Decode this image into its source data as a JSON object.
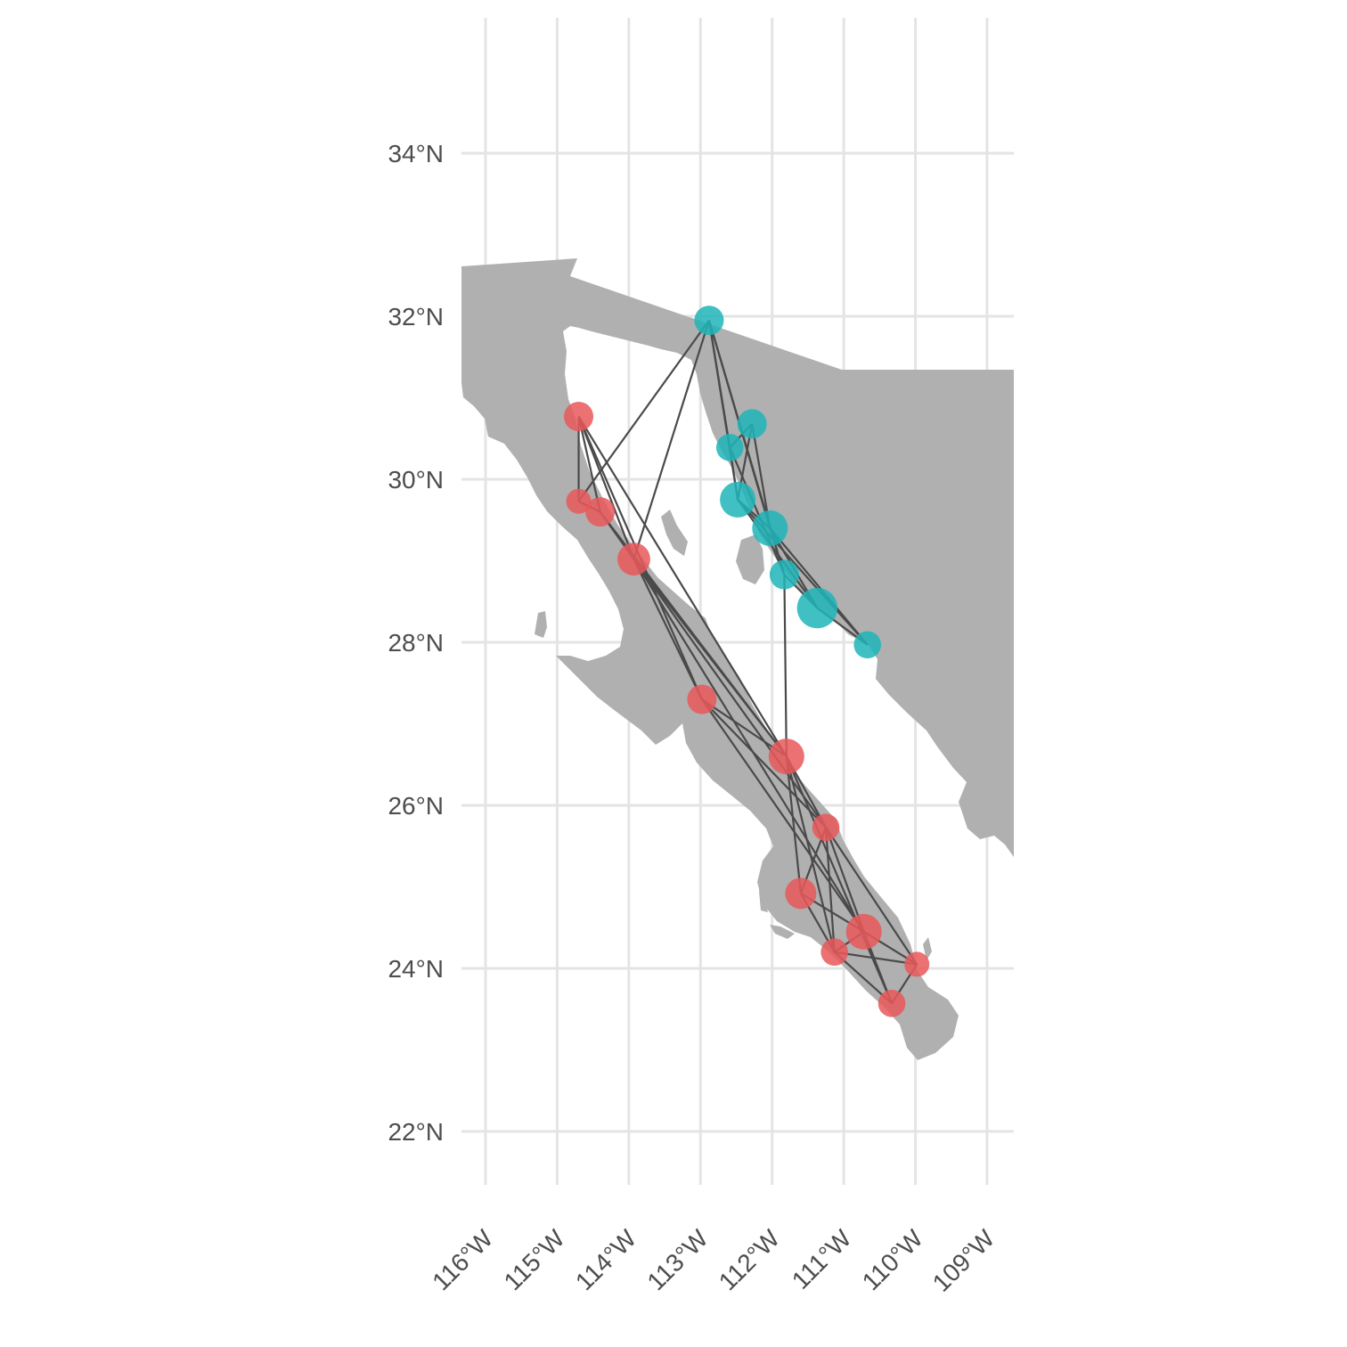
{
  "chart_data": {
    "type": "scatter",
    "title": "",
    "xlabel": "",
    "ylabel": "",
    "xlim": [
      -116.35,
      -108.7
    ],
    "ylim": [
      21.4,
      35.5
    ],
    "grid": true,
    "legend": "none",
    "x_ticks": [
      {
        "value": -116,
        "label": "116°W"
      },
      {
        "value": -115,
        "label": "115°W"
      },
      {
        "value": -114,
        "label": "114°W"
      },
      {
        "value": -113,
        "label": "113°W"
      },
      {
        "value": -112,
        "label": "112°W"
      },
      {
        "value": -111,
        "label": "111°W"
      },
      {
        "value": -110,
        "label": "110°W"
      },
      {
        "value": -109,
        "label": "109°W"
      }
    ],
    "y_ticks": [
      {
        "value": 22,
        "label": "22°N"
      },
      {
        "value": 24,
        "label": "24°N"
      },
      {
        "value": 26,
        "label": "26°N"
      },
      {
        "value": 28,
        "label": "28°N"
      },
      {
        "value": 30,
        "label": "30°N"
      },
      {
        "value": 32,
        "label": "32°N"
      },
      {
        "value": 34,
        "label": "34°N"
      }
    ],
    "colors": {
      "group_a": "#e8585a",
      "group_b": "#1fb5b8",
      "land": "#b0b0b0",
      "edge": "#4a4a4a"
    },
    "nodes": [
      {
        "id": "a1",
        "group": "group_a",
        "lon": -114.7,
        "lat": 30.77,
        "size": 2
      },
      {
        "id": "a2",
        "group": "group_a",
        "lon": -114.7,
        "lat": 29.73,
        "size": 1
      },
      {
        "id": "a3",
        "group": "group_a",
        "lon": -114.4,
        "lat": 29.6,
        "size": 2
      },
      {
        "id": "a4",
        "group": "group_a",
        "lon": -113.93,
        "lat": 29.02,
        "size": 3
      },
      {
        "id": "a5",
        "group": "group_a",
        "lon": -112.98,
        "lat": 27.3,
        "size": 2
      },
      {
        "id": "a6",
        "group": "group_a",
        "lon": -111.8,
        "lat": 26.6,
        "size": 4
      },
      {
        "id": "a7",
        "group": "group_a",
        "lon": -111.25,
        "lat": 25.73,
        "size": 1.5
      },
      {
        "id": "a8",
        "group": "group_a",
        "lon": -111.6,
        "lat": 24.92,
        "size": 2.5
      },
      {
        "id": "a9",
        "group": "group_a",
        "lon": -110.72,
        "lat": 24.45,
        "size": 4
      },
      {
        "id": "a10",
        "group": "group_a",
        "lon": -111.13,
        "lat": 24.2,
        "size": 1.5
      },
      {
        "id": "a11",
        "group": "group_a",
        "lon": -109.98,
        "lat": 24.05,
        "size": 1
      },
      {
        "id": "a12",
        "group": "group_a",
        "lon": -110.33,
        "lat": 23.57,
        "size": 1.5
      },
      {
        "id": "b1",
        "group": "group_b",
        "lon": -112.88,
        "lat": 31.95,
        "size": 2
      },
      {
        "id": "b2",
        "group": "group_b",
        "lon": -112.28,
        "lat": 30.68,
        "size": 2
      },
      {
        "id": "b3",
        "group": "group_b",
        "lon": -112.59,
        "lat": 30.39,
        "size": 1.5
      },
      {
        "id": "b4",
        "group": "group_b",
        "lon": -112.48,
        "lat": 29.75,
        "size": 4
      },
      {
        "id": "b5",
        "group": "group_b",
        "lon": -112.03,
        "lat": 29.4,
        "size": 4
      },
      {
        "id": "b6",
        "group": "group_b",
        "lon": -111.83,
        "lat": 28.83,
        "size": 2
      },
      {
        "id": "b7",
        "group": "group_b",
        "lon": -111.37,
        "lat": 28.42,
        "size": 6
      },
      {
        "id": "b8",
        "group": "group_b",
        "lon": -110.67,
        "lat": 27.97,
        "size": 1.5
      }
    ],
    "edges": [
      [
        "a1",
        "a2"
      ],
      [
        "a1",
        "a3"
      ],
      [
        "a1",
        "a4"
      ],
      [
        "a1",
        "a5"
      ],
      [
        "a1",
        "a6"
      ],
      [
        "a2",
        "a3"
      ],
      [
        "a2",
        "b1"
      ],
      [
        "a3",
        "a4"
      ],
      [
        "a3",
        "a6"
      ],
      [
        "a4",
        "b1"
      ],
      [
        "a4",
        "a5"
      ],
      [
        "a4",
        "a6"
      ],
      [
        "a4",
        "a7"
      ],
      [
        "a4",
        "a9"
      ],
      [
        "a5",
        "a6"
      ],
      [
        "a5",
        "a7"
      ],
      [
        "a5",
        "a9"
      ],
      [
        "a6",
        "a7"
      ],
      [
        "a6",
        "a8"
      ],
      [
        "a6",
        "a10"
      ],
      [
        "a6",
        "a12"
      ],
      [
        "a7",
        "a8"
      ],
      [
        "a7",
        "a9"
      ],
      [
        "a7",
        "a10"
      ],
      [
        "a7",
        "a11"
      ],
      [
        "a8",
        "a9"
      ],
      [
        "a8",
        "a10"
      ],
      [
        "a9",
        "a10"
      ],
      [
        "a9",
        "a11"
      ],
      [
        "a9",
        "a12"
      ],
      [
        "a10",
        "a11"
      ],
      [
        "a10",
        "a12"
      ],
      [
        "a11",
        "a12"
      ],
      [
        "b1",
        "b3"
      ],
      [
        "b1",
        "b4"
      ],
      [
        "b1",
        "b5"
      ],
      [
        "b1",
        "b6"
      ],
      [
        "b2",
        "b3"
      ],
      [
        "b2",
        "b4"
      ],
      [
        "b2",
        "b5"
      ],
      [
        "b3",
        "b4"
      ],
      [
        "b3",
        "b6"
      ],
      [
        "b4",
        "b5"
      ],
      [
        "b4",
        "b7"
      ],
      [
        "b4",
        "b8"
      ],
      [
        "b5",
        "b6"
      ],
      [
        "b5",
        "b7"
      ],
      [
        "b5",
        "b8"
      ],
      [
        "b6",
        "b7"
      ],
      [
        "b6",
        "a6"
      ],
      [
        "b7",
        "b8"
      ]
    ]
  }
}
